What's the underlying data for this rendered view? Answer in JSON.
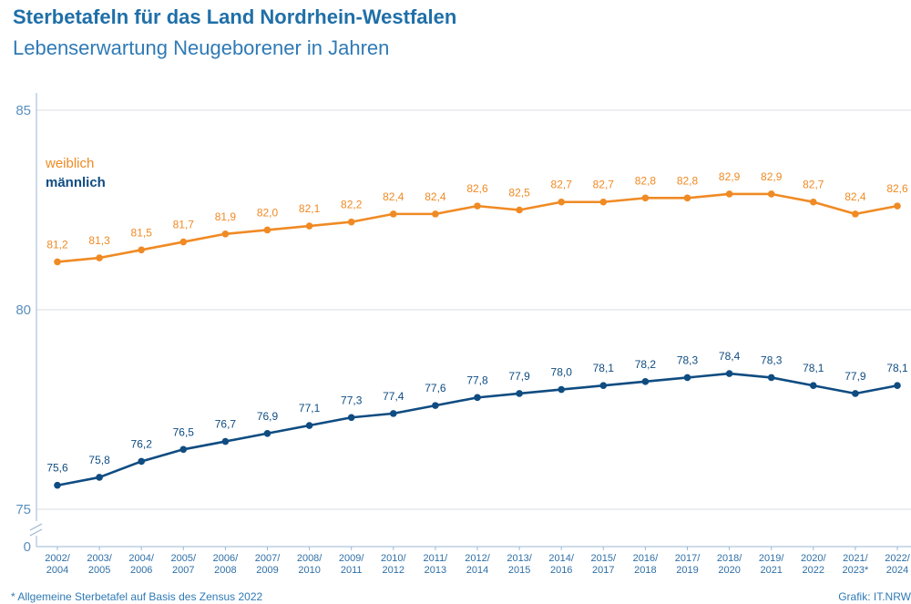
{
  "title": "Sterbetafeln für das Land Nordrhein-Westfalen",
  "subtitle": "Lebenserwartung Neugeborener in Jahren",
  "footnote": "*  Allgemeine Sterbetafel auf Basis des Zensus 2022",
  "source": "Grafik: IT.NRW",
  "colors": {
    "weiblich": "#f08a24",
    "maennlich": "#0f4c81",
    "axis_text": "#5a8fbf",
    "grid": "#d9dde3"
  },
  "chart_data": {
    "type": "line",
    "x": [
      [
        "2002/",
        "2004"
      ],
      [
        "2003/",
        "2005"
      ],
      [
        "2004/",
        "2006"
      ],
      [
        "2005/",
        "2007"
      ],
      [
        "2006/",
        "2008"
      ],
      [
        "2007/",
        "2009"
      ],
      [
        "2008/",
        "2010"
      ],
      [
        "2009/",
        "2011"
      ],
      [
        "2010/",
        "2012"
      ],
      [
        "2011/",
        "2013"
      ],
      [
        "2012/",
        "2014"
      ],
      [
        "2013/",
        "2015"
      ],
      [
        "2014/",
        "2016"
      ],
      [
        "2015/",
        "2017"
      ],
      [
        "2016/",
        "2018"
      ],
      [
        "2017/",
        "2019"
      ],
      [
        "2018/",
        "2020"
      ],
      [
        "2019/",
        "2021"
      ],
      [
        "2020/",
        "2022"
      ],
      [
        "2021/",
        "2023*"
      ],
      [
        "2022/",
        "2024"
      ]
    ],
    "y_ticks": [
      {
        "value": 85,
        "label": "85"
      },
      {
        "value": 80,
        "label": "80"
      },
      {
        "value": 75,
        "label": "75"
      },
      {
        "value": 0,
        "label": "0"
      }
    ],
    "axis_break": true,
    "series": [
      {
        "name": "weiblich",
        "values": [
          81.2,
          81.3,
          81.5,
          81.7,
          81.9,
          82.0,
          82.1,
          82.2,
          82.4,
          82.4,
          82.6,
          82.5,
          82.7,
          82.7,
          82.8,
          82.8,
          82.9,
          82.9,
          82.7,
          82.4,
          82.6
        ],
        "labels": [
          "81,2",
          "81,3",
          "81,5",
          "81,7",
          "81,9",
          "82,0",
          "82,1",
          "82,2",
          "82,4",
          "82,4",
          "82,6",
          "82,5",
          "82,7",
          "82,7",
          "82,8",
          "82,8",
          "82,9",
          "82,9",
          "82,7",
          "82,4",
          "82,6"
        ]
      },
      {
        "name": "männlich",
        "values": [
          75.6,
          75.8,
          76.2,
          76.5,
          76.7,
          76.9,
          77.1,
          77.3,
          77.4,
          77.6,
          77.8,
          77.9,
          78.0,
          78.1,
          78.2,
          78.3,
          78.4,
          78.3,
          78.1,
          77.9,
          78.1
        ],
        "labels": [
          "75,6",
          "75,8",
          "76,2",
          "76,5",
          "76,7",
          "76,9",
          "77,1",
          "77,3",
          "77,4",
          "77,6",
          "77,8",
          "77,9",
          "78,0",
          "78,1",
          "78,2",
          "78,3",
          "78,4",
          "78,3",
          "78,1",
          "77,9",
          "78,1"
        ]
      }
    ],
    "grid": true,
    "legend": "top-left"
  }
}
